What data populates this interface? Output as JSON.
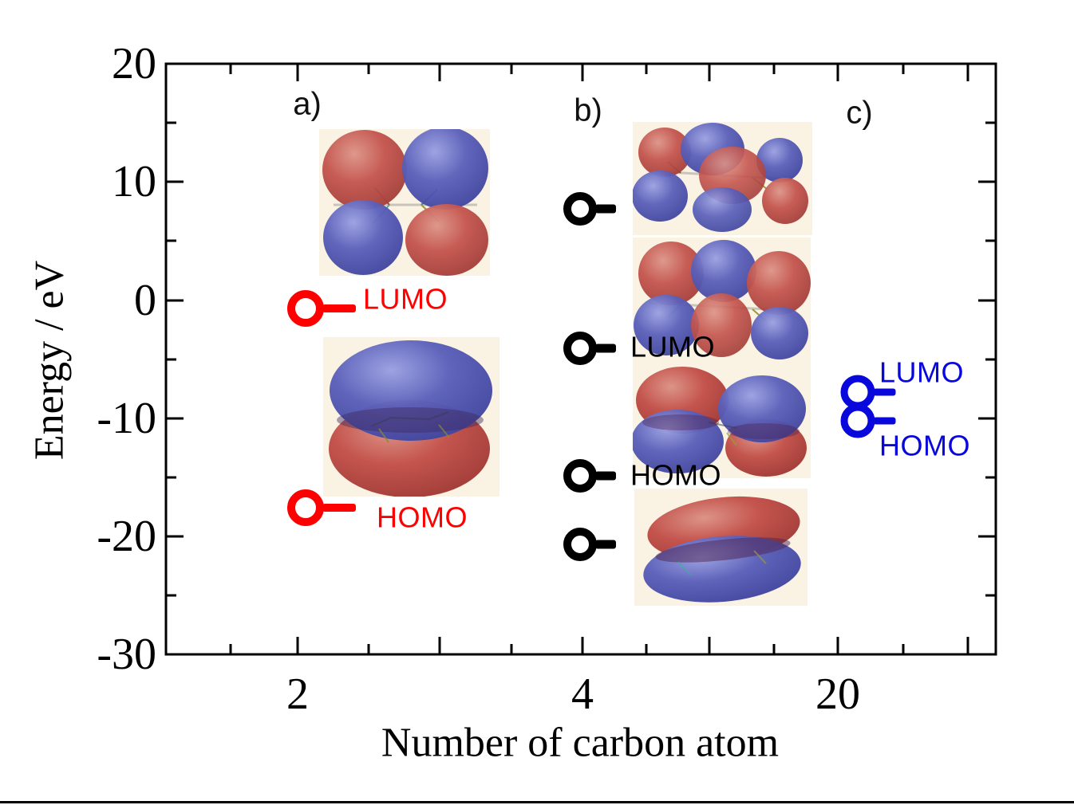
{
  "figure": {
    "panel_labels": [
      "a)",
      "b)",
      "c)"
    ]
  },
  "chart_data": {
    "type": "scatter",
    "title": "",
    "xlabel": "Number of carbon atom",
    "ylabel": "Energy / eV",
    "ylim": [
      -30,
      20
    ],
    "y_ticks": [
      "20",
      "10",
      "0",
      "-10",
      "-20",
      "-30"
    ],
    "x_tick_labels": [
      "2",
      "4",
      "20"
    ],
    "grid": false,
    "legend_position": "none",
    "series": [
      {
        "name": "2 carbon atoms (a)",
        "carbon_atoms": 2,
        "color": "#ff0000",
        "x_label": "2",
        "points": [
          {
            "label": "LUMO",
            "energy_eV": -0.7
          },
          {
            "label": "HOMO",
            "energy_eV": -17.6
          }
        ]
      },
      {
        "name": "4 carbon atoms (b)",
        "carbon_atoms": 4,
        "color": "#000000",
        "x_label": "4",
        "points": [
          {
            "label": "",
            "energy_eV": 7.7
          },
          {
            "label": "LUMO",
            "energy_eV": -4.1
          },
          {
            "label": "HOMO",
            "energy_eV": -14.9
          },
          {
            "label": "",
            "energy_eV": -20.7
          }
        ]
      },
      {
        "name": "20 carbon atoms (c)",
        "carbon_atoms": 20,
        "color": "#0808dd",
        "x_label": "20",
        "points": [
          {
            "label": "LUMO",
            "energy_eV": -7.8
          },
          {
            "label": "HOMO",
            "energy_eV": -10.2
          }
        ]
      }
    ],
    "orbital_images": [
      {
        "name": "c2-lumo-orbital-image",
        "pattern": "four lobes: red top-left, blue top-right, blue bottom-left, red bottom-right"
      },
      {
        "name": "c2-homo-orbital-image",
        "pattern": "two large lobes: blue top, red bottom"
      },
      {
        "name": "c4-upper-orbital-image",
        "pattern": "eight alternating red/blue lobes"
      },
      {
        "name": "c4-lumo-orbital-image",
        "pattern": "six lobes: red-blue-red top row, blue-red-blue bottom row"
      },
      {
        "name": "c4-homo-orbital-image",
        "pattern": "four lobes: red/blue left pair, blue/red right pair"
      },
      {
        "name": "c4-lower-orbital-image",
        "pattern": "two elongated lobes: red top, blue bottom"
      }
    ],
    "colors": {
      "positive_phase_lobe": "#c4554e",
      "negative_phase_lobe": "#5b60ba",
      "image_background": "#faf2e2"
    }
  }
}
